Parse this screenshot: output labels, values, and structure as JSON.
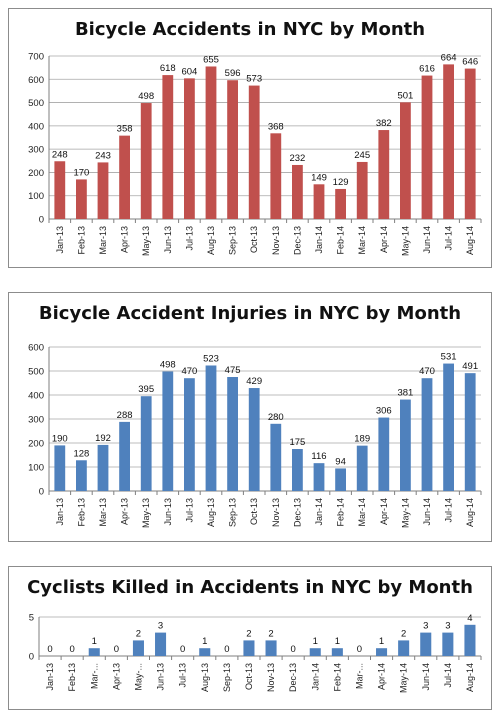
{
  "chart_data": [
    {
      "type": "bar",
      "title": "Bicycle Accidents in NYC by Month",
      "color": "#c0504d",
      "categories": [
        "Jan-13",
        "Feb-13",
        "Mar-13",
        "Apr-13",
        "May-13",
        "Jun-13",
        "Jul-13",
        "Aug-13",
        "Sep-13",
        "Oct-13",
        "Nov-13",
        "Dec-13",
        "Jan-14",
        "Feb-14",
        "Mar-14",
        "Apr-14",
        "May-14",
        "Jun-14",
        "Jul-14",
        "Aug-14"
      ],
      "values": [
        248,
        170,
        243,
        358,
        498,
        618,
        604,
        655,
        596,
        573,
        368,
        232,
        149,
        129,
        245,
        382,
        501,
        616,
        664,
        646
      ],
      "ylim": [
        0,
        700
      ],
      "yticks": [
        "0",
        "100",
        "200",
        "300",
        "400",
        "500",
        "600",
        "700"
      ],
      "grid": true,
      "legend": "none"
    },
    {
      "type": "bar",
      "title": "Bicycle Accident Injuries in NYC by Month",
      "color": "#4f81bd",
      "categories": [
        "Jan-13",
        "Feb-13",
        "Mar-13",
        "Apr-13",
        "May-13",
        "Jun-13",
        "Jul-13",
        "Aug-13",
        "Sep-13",
        "Oct-13",
        "Nov-13",
        "Dec-13",
        "Jan-14",
        "Feb-14",
        "Mar-14",
        "Apr-14",
        "May-14",
        "Jun-14",
        "Jul-14",
        "Aug-14"
      ],
      "values": [
        190,
        128,
        192,
        288,
        395,
        498,
        470,
        523,
        475,
        429,
        280,
        175,
        116,
        94,
        189,
        306,
        381,
        470,
        531,
        491
      ],
      "ylim": [
        0,
        600
      ],
      "yticks": [
        "0",
        "100",
        "200",
        "300",
        "400",
        "500",
        "600"
      ],
      "grid": true,
      "legend": "none"
    },
    {
      "type": "bar",
      "title": "Cyclists Killed in Accidents in NYC by Month",
      "color": "#4f81bd",
      "categories": [
        "Jan-13",
        "Feb-13",
        "Mar-...",
        "Apr-13",
        "May-...",
        "Jun-13",
        "Jul-13",
        "Aug-13",
        "Sep-13",
        "Oct-13",
        "Nov-13",
        "Dec-13",
        "Jan-14",
        "Feb-14",
        "Mar-...",
        "Apr-14",
        "May-14",
        "Jun-14",
        "Jul-14",
        "Aug-14"
      ],
      "values": [
        0,
        0,
        1,
        0,
        2,
        3,
        0,
        1,
        0,
        2,
        2,
        0,
        1,
        1,
        0,
        1,
        2,
        3,
        3,
        4
      ],
      "ylim": [
        0,
        5
      ],
      "yticks": [
        "0",
        "5"
      ],
      "grid": true,
      "legend": "none"
    }
  ]
}
